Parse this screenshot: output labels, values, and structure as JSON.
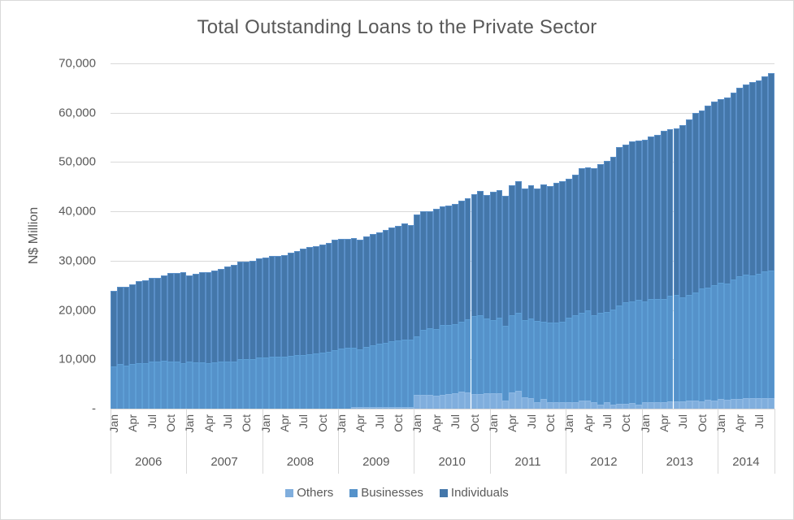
{
  "chart_data": {
    "type": "bar",
    "stacked": true,
    "title": "Total Outstanding Loans to the Private Sector",
    "xlabel": "",
    "ylabel": "N$ Million",
    "ylim": [
      0,
      70000
    ],
    "yticks": [
      "-",
      "10,000",
      "20,000",
      "30,000",
      "40,000",
      "50,000",
      "60,000",
      "70,000"
    ],
    "grid": true,
    "legend_position": "bottom",
    "month_tick_labels": [
      "Jan",
      "Apr",
      "Jul",
      "Oct"
    ],
    "years": [
      "2006",
      "2007",
      "2008",
      "2009",
      "2010",
      "2011",
      "2012",
      "2013",
      "2014"
    ],
    "months_per_year": [
      12,
      12,
      12,
      12,
      12,
      12,
      12,
      12,
      9
    ],
    "colors": {
      "Others": "#80aedd",
      "Businesses": "#5592ca",
      "Individuals": "#4477aa"
    },
    "series": [
      {
        "name": "Others",
        "values": [
          0,
          0,
          0,
          0,
          0,
          0,
          0,
          0,
          0,
          0,
          0,
          0,
          0,
          0,
          0,
          0,
          0,
          0,
          0,
          0,
          0,
          0,
          0,
          0,
          0,
          0,
          0,
          0,
          0,
          0,
          0,
          0,
          0,
          0,
          0,
          0,
          0,
          0,
          300,
          300,
          300,
          300,
          300,
          300,
          300,
          400,
          400,
          400,
          2800,
          2800,
          2800,
          2600,
          2800,
          3000,
          3200,
          3500,
          3300,
          2900,
          2900,
          3100,
          3100,
          3200,
          1700,
          3300,
          3600,
          2300,
          2200,
          1300,
          1900,
          1300,
          1300,
          1400,
          1400,
          1300,
          1600,
          1600,
          1400,
          800,
          1400,
          900,
          1000,
          1000,
          1200,
          900,
          1400,
          1400,
          1400,
          1400,
          1500,
          1500,
          1500,
          1700,
          1700,
          1500,
          1800,
          1600,
          1900,
          1800,
          1900,
          1900,
          2100,
          2100,
          2200,
          2200,
          2200
        ]
      },
      {
        "name": "Businesses",
        "values": [
          8500,
          9000,
          8700,
          9100,
          9300,
          9300,
          9600,
          9600,
          9700,
          9600,
          9600,
          9300,
          9600,
          9400,
          9400,
          9300,
          9400,
          9500,
          9600,
          9600,
          10000,
          10100,
          10100,
          10300,
          10400,
          10600,
          10500,
          10500,
          10700,
          10800,
          10900,
          11000,
          11200,
          11300,
          11600,
          11800,
          12200,
          12400,
          12000,
          11800,
          12200,
          12500,
          12800,
          13000,
          13300,
          13400,
          13600,
          13600,
          11900,
          13200,
          13500,
          13600,
          14100,
          14000,
          14000,
          14200,
          14800,
          15800,
          16100,
          15200,
          14900,
          15300,
          15100,
          15700,
          15800,
          15700,
          16100,
          16500,
          15700,
          16100,
          16100,
          16300,
          17000,
          17600,
          17800,
          18300,
          17500,
          18700,
          18200,
          19200,
          20000,
          20500,
          20500,
          21100,
          20300,
          20800,
          20900,
          20900,
          21400,
          21500,
          21100,
          21400,
          21900,
          22800,
          22800,
          23400,
          23600,
          23600,
          24300,
          24900,
          25000,
          24900,
          25100,
          25700,
          25800
        ]
      },
      {
        "name": "Individuals",
        "values": [
          15400,
          15700,
          16000,
          16100,
          16500,
          16700,
          17000,
          17000,
          17300,
          17900,
          17900,
          18300,
          17400,
          18000,
          18200,
          18300,
          18600,
          18800,
          19300,
          19500,
          19800,
          19700,
          19900,
          20200,
          20300,
          20300,
          20500,
          20700,
          21000,
          21100,
          21500,
          21800,
          21800,
          21900,
          22000,
          22500,
          22200,
          22000,
          22300,
          22100,
          22400,
          22600,
          22600,
          23000,
          23100,
          23300,
          23500,
          23200,
          24600,
          24000,
          23700,
          24300,
          24100,
          24100,
          24300,
          24400,
          24500,
          24800,
          25200,
          25000,
          26000,
          25800,
          26400,
          26300,
          26700,
          26600,
          27000,
          26900,
          27800,
          27800,
          28400,
          28500,
          28200,
          28500,
          29400,
          29100,
          29800,
          30100,
          30700,
          31000,
          32000,
          32000,
          32500,
          32400,
          32800,
          32900,
          33200,
          34000,
          33800,
          33800,
          34900,
          35600,
          36400,
          36200,
          36800,
          37300,
          37300,
          37700,
          37900,
          38300,
          38600,
          39200,
          39200,
          39400,
          40000
        ]
      }
    ]
  }
}
